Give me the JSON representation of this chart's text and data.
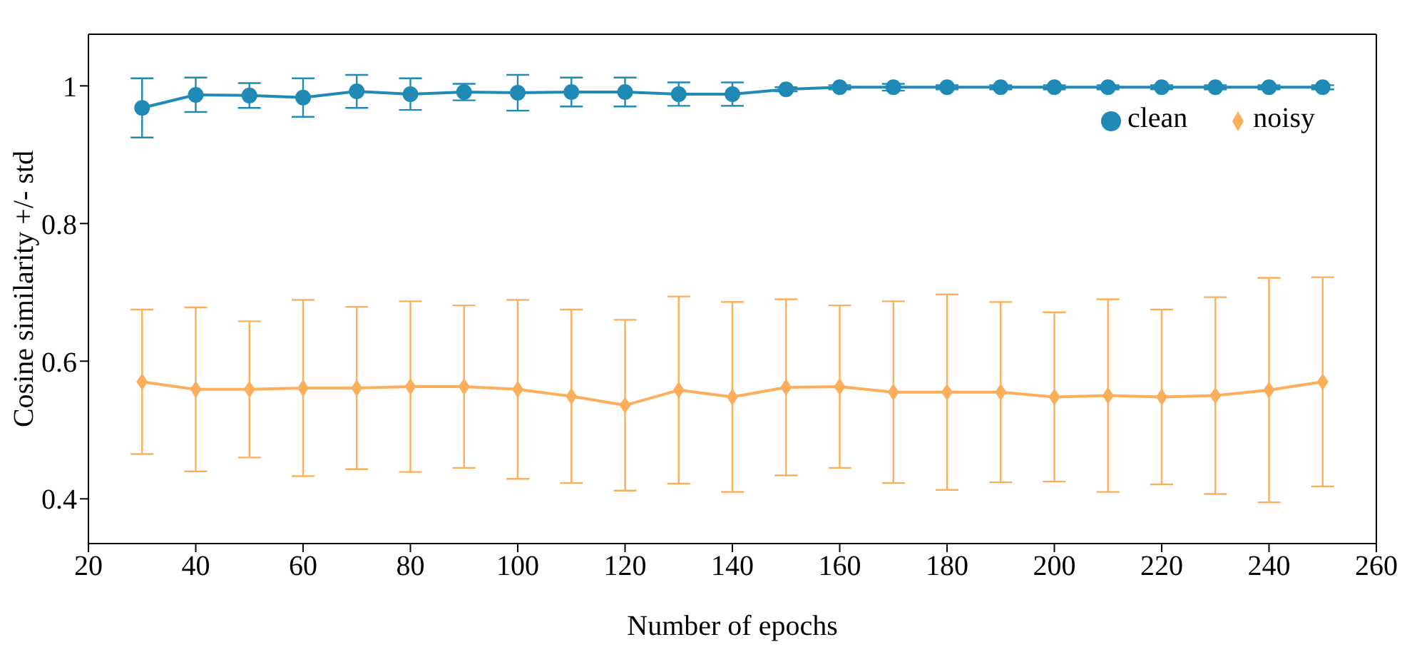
{
  "chart_data": {
    "type": "line",
    "xlabel": "Number of epochs",
    "ylabel": "Cosine similarity +/- std",
    "x": [
      30,
      40,
      50,
      60,
      70,
      80,
      90,
      100,
      110,
      120,
      130,
      140,
      150,
      160,
      170,
      180,
      190,
      200,
      210,
      220,
      230,
      240,
      250
    ],
    "series": [
      {
        "name": "clean",
        "color": "#1f8ab5",
        "marker": "circle",
        "values": [
          0.968,
          0.987,
          0.986,
          0.983,
          0.992,
          0.988,
          0.991,
          0.99,
          0.991,
          0.991,
          0.988,
          0.988,
          0.995,
          0.998,
          0.998,
          0.998,
          0.998,
          0.998,
          0.998,
          0.998,
          0.998,
          0.998,
          0.998
        ],
        "errors": [
          0.043,
          0.025,
          0.018,
          0.028,
          0.024,
          0.023,
          0.012,
          0.026,
          0.021,
          0.021,
          0.017,
          0.017,
          0.003,
          0.003,
          0.005,
          0.003,
          0.003,
          0.003,
          0.003,
          0.003,
          0.003,
          0.003,
          0.003
        ]
      },
      {
        "name": "noisy",
        "color": "#fdae5a",
        "marker": "diamond",
        "values": [
          0.57,
          0.559,
          0.559,
          0.561,
          0.561,
          0.563,
          0.563,
          0.559,
          0.549,
          0.536,
          0.558,
          0.548,
          0.562,
          0.563,
          0.555,
          0.555,
          0.555,
          0.548,
          0.55,
          0.548,
          0.55,
          0.558,
          0.57
        ],
        "errors": [
          0.105,
          0.119,
          0.099,
          0.128,
          0.118,
          0.124,
          0.118,
          0.13,
          0.126,
          0.124,
          0.136,
          0.138,
          0.128,
          0.118,
          0.132,
          0.142,
          0.131,
          0.123,
          0.14,
          0.127,
          0.143,
          0.163,
          0.152
        ]
      }
    ],
    "xlim": [
      20,
      260
    ],
    "xticks": [
      20,
      40,
      60,
      80,
      100,
      120,
      140,
      160,
      180,
      200,
      220,
      240,
      260
    ],
    "ylim": [
      0.335,
      1.075
    ],
    "yticks": [
      {
        "value": 0.4,
        "label": "0.4"
      },
      {
        "value": 0.6,
        "label": "0.6"
      },
      {
        "value": 0.8,
        "label": "0.8"
      },
      {
        "value": 1,
        "label": "1"
      }
    ],
    "grid": false,
    "legend": "top right"
  }
}
